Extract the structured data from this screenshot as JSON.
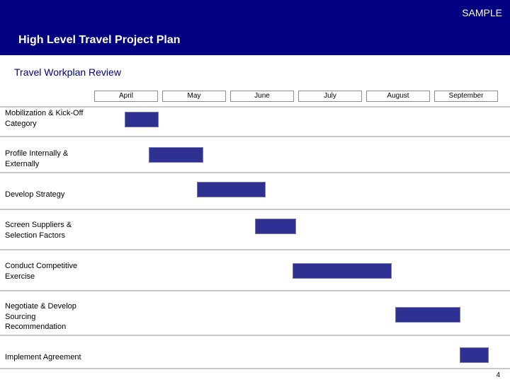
{
  "header": {
    "sample_label": "SAMPLE",
    "title": "High Level Travel Project Plan"
  },
  "subtitle": "Travel Workplan Review",
  "page_number": "4",
  "colors": {
    "header_bg": "#000080",
    "bar": "#2e3192",
    "subtitle": "#000080"
  },
  "chart_data": {
    "type": "gantt",
    "months": [
      "April",
      "May",
      "June",
      "July",
      "August",
      "September"
    ],
    "tasks": [
      {
        "label": "Mobilization & Kick-Off\nCategory",
        "start": 0.45,
        "end": 0.95
      },
      {
        "label": "Profile Internally &\nExternally",
        "start": 0.8,
        "end": 1.6
      },
      {
        "label": "Develop Strategy",
        "start": 1.5,
        "end": 2.5
      },
      {
        "label": "Screen Suppliers &\nSelection Factors",
        "start": 2.35,
        "end": 2.95
      },
      {
        "label": "Conduct Competitive\nExercise",
        "start": 2.9,
        "end": 4.35
      },
      {
        "label": "Negotiate & Develop\nSourcing\nRecommendation",
        "start": 4.4,
        "end": 5.35
      },
      {
        "label": "Implement Agreement",
        "start": 5.35,
        "end": 5.78
      }
    ]
  }
}
